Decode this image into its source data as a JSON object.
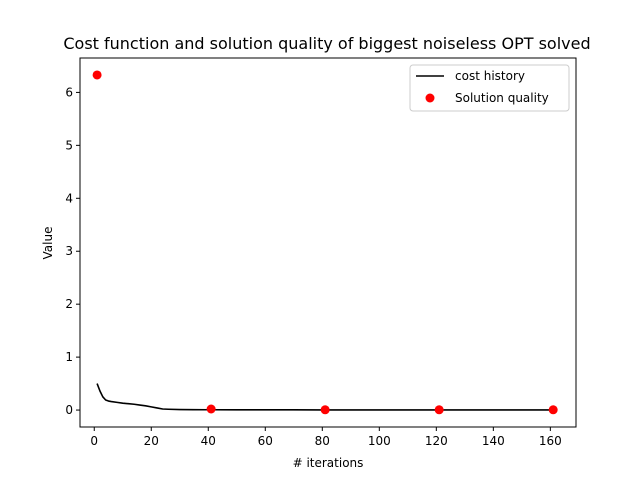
{
  "chart_data": {
    "type": "line",
    "title": "Cost function and solution quality of biggest noiseless OPT solved",
    "xlabel": "# iterations",
    "ylabel": "Value",
    "xlim": [
      -5,
      169
    ],
    "ylim": [
      -0.32,
      6.65
    ],
    "x_ticks": [
      0,
      20,
      40,
      60,
      80,
      100,
      120,
      140,
      160
    ],
    "y_ticks": [
      0,
      1,
      2,
      3,
      4,
      5,
      6
    ],
    "grid": false,
    "legend_position": "upper-right",
    "series": [
      {
        "name": "cost history",
        "kind": "line",
        "color": "#000000",
        "x": [
          1,
          2,
          3,
          4,
          5,
          6,
          8,
          10,
          12,
          14,
          16,
          18,
          20,
          22,
          24,
          26,
          30,
          35,
          40,
          50,
          60,
          70,
          80,
          90,
          100,
          110,
          120,
          130,
          140,
          150,
          160
        ],
        "y": [
          0.5,
          0.36,
          0.25,
          0.19,
          0.17,
          0.16,
          0.145,
          0.13,
          0.12,
          0.11,
          0.095,
          0.08,
          0.06,
          0.04,
          0.02,
          0.015,
          0.01,
          0.008,
          0.006,
          0.005,
          0.004,
          0.004,
          0.003,
          0.003,
          0.003,
          0.003,
          0.003,
          0.003,
          0.003,
          0.003,
          0.003
        ]
      },
      {
        "name": "Solution quality",
        "kind": "scatter",
        "color": "#ff0000",
        "x": [
          1,
          41,
          81,
          121,
          161
        ],
        "y": [
          6.33,
          0.02,
          0.005,
          0.005,
          0.005
        ]
      }
    ]
  }
}
